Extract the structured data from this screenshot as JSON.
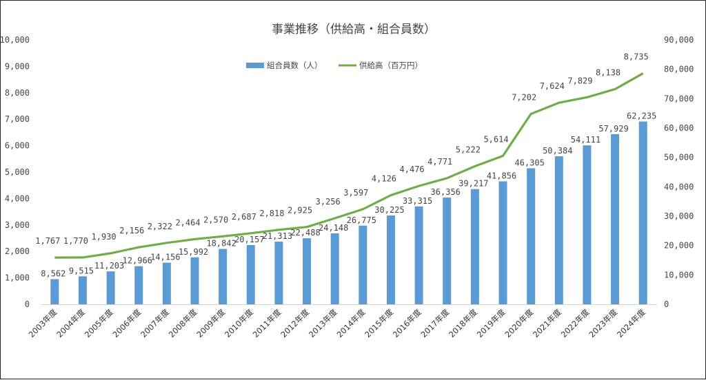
{
  "chart_data": {
    "type": "bar",
    "title": "事業推移（供給高・組合員数）",
    "categories": [
      "2003年度",
      "2004年度",
      "2005年度",
      "2006年度",
      "2007年度",
      "2008年度",
      "2009年度",
      "2010年度",
      "2011年度",
      "2012年度",
      "2013年度",
      "2014年度",
      "2015年度",
      "2016年度",
      "2017年度",
      "2018年度",
      "2019年度",
      "2020年度",
      "2021年度",
      "2022年度",
      "2023年度",
      "2024年度"
    ],
    "series": [
      {
        "name": "組合員数（人）",
        "type": "bar",
        "axis": "right",
        "color": "#5B9BD5",
        "values": [
          8562,
          9515,
          11203,
          12966,
          14156,
          15992,
          18842,
          20157,
          21313,
          22488,
          24148,
          26775,
          30225,
          33315,
          36356,
          39217,
          41856,
          46305,
          50384,
          54111,
          57929,
          62235
        ],
        "labels": [
          "8,562",
          "9,515",
          "11,203",
          "12,966",
          "14,156",
          "15,992",
          "18,842",
          "20,157",
          "21,313",
          "22,488",
          "24,148",
          "26,775",
          "30,225",
          "33,315",
          "36,356",
          "39,217",
          "41,856",
          "46,305",
          "50,384",
          "54,111",
          "57,929",
          "62,235"
        ]
      },
      {
        "name": "供給高（百万円）",
        "type": "line",
        "axis": "left",
        "color": "#70AD47",
        "values": [
          1767,
          1770,
          1930,
          2156,
          2322,
          2464,
          2570,
          2687,
          2818,
          2925,
          3256,
          3597,
          4126,
          4476,
          4771,
          5222,
          5614,
          7202,
          7624,
          7829,
          8138,
          8735
        ],
        "labels": [
          "1,767",
          "1,770",
          "1,930",
          "2,156",
          "2,322",
          "2,464",
          "2,570",
          "2,687",
          "2,818",
          "2,925",
          "3,256",
          "3,597",
          "4,126",
          "4,476",
          "4,771",
          "5,222",
          "5,614",
          "7,202",
          "7,624",
          "7,829",
          "8,138",
          "8,735"
        ]
      }
    ],
    "y_left": {
      "ylim": [
        0,
        10000
      ],
      "ticks": [
        "0",
        "1,000",
        "2,000",
        "3,000",
        "4,000",
        "5,000",
        "6,000",
        "7,000",
        "8,000",
        "9,000",
        "10,000"
      ]
    },
    "y_right": {
      "ylim": [
        0,
        90000
      ],
      "ticks": [
        "0",
        "10,000",
        "20,000",
        "30,000",
        "40,000",
        "50,000",
        "60,000",
        "70,000",
        "80,000",
        "90,000"
      ]
    },
    "grid": false,
    "legend_position": "top-center"
  }
}
